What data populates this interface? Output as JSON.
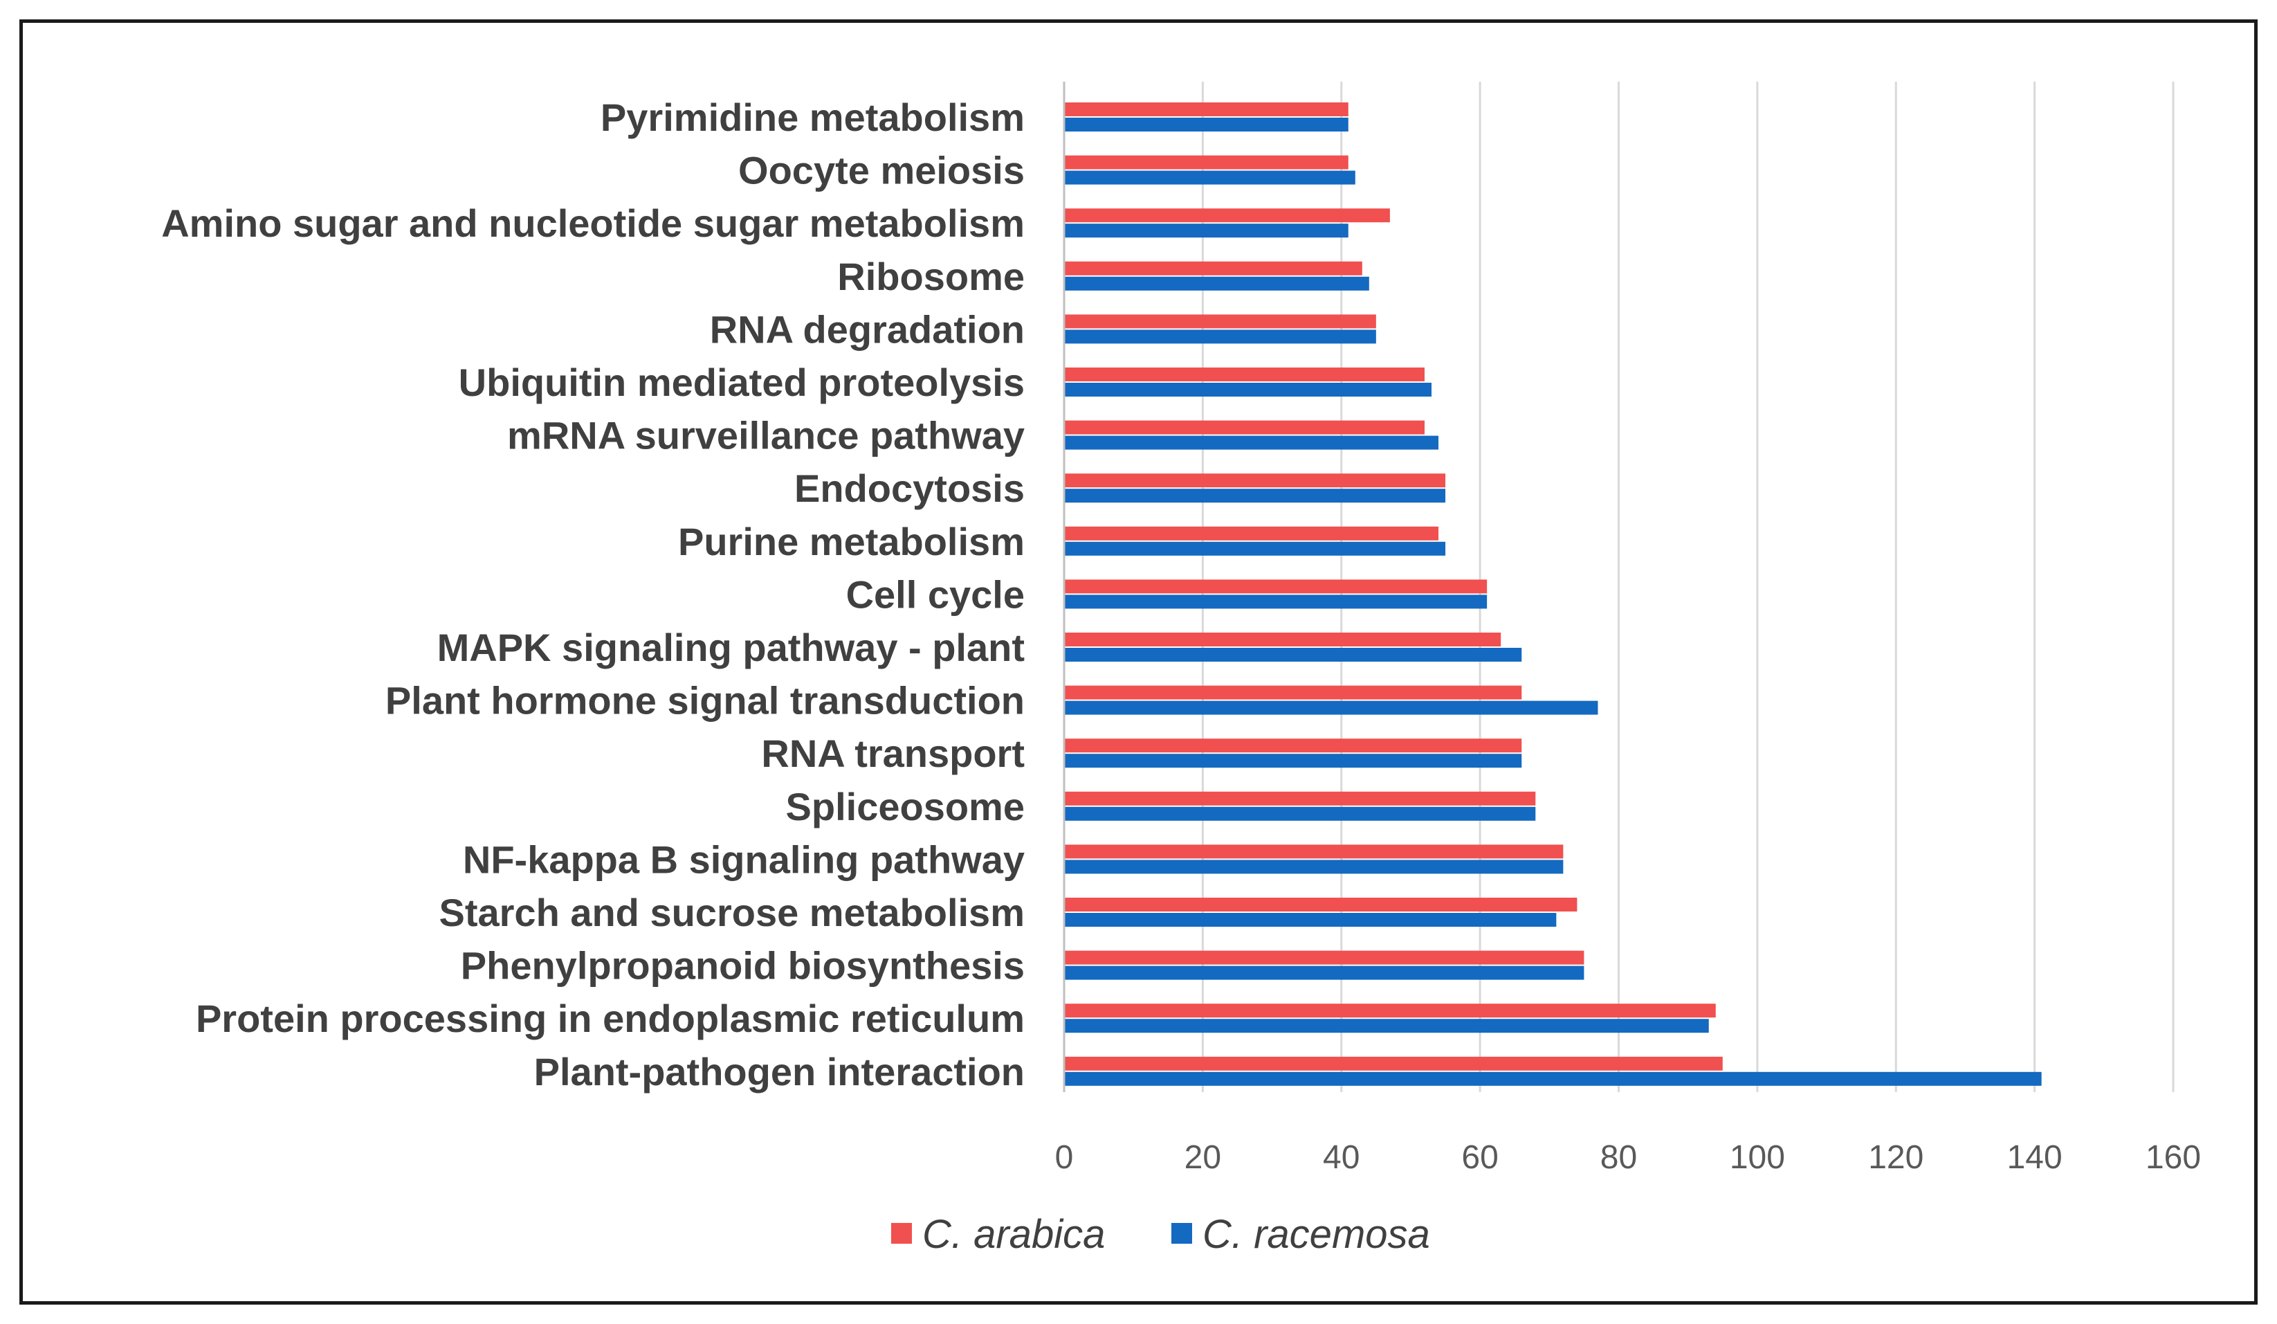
{
  "chart_data": {
    "type": "bar",
    "orientation": "horizontal",
    "categories": [
      "Pyrimidine metabolism",
      "Oocyte meiosis",
      "Amino sugar and nucleotide sugar metabolism",
      "Ribosome",
      "RNA degradation",
      "Ubiquitin mediated proteolysis",
      "mRNA surveillance pathway",
      "Endocytosis",
      "Purine metabolism",
      "Cell cycle",
      "MAPK signaling pathway - plant",
      "Plant hormone signal transduction",
      "RNA transport",
      "Spliceosome",
      "NF-kappa B signaling pathway",
      "Starch and sucrose metabolism",
      "Phenylpropanoid biosynthesis",
      "Protein processing in endoplasmic reticulum",
      "Plant-pathogen interaction"
    ],
    "series": [
      {
        "name": "C. arabica",
        "color": "#f0504f",
        "values": [
          41,
          41,
          47,
          43,
          45,
          52,
          52,
          55,
          54,
          61,
          63,
          66,
          66,
          68,
          72,
          74,
          75,
          94,
          95
        ]
      },
      {
        "name": "C. racemosa",
        "color": "#1469c0",
        "values": [
          41,
          42,
          41,
          44,
          45,
          53,
          54,
          55,
          55,
          61,
          66,
          77,
          66,
          68,
          72,
          71,
          75,
          93,
          141
        ]
      }
    ],
    "xlim": [
      0,
      160
    ],
    "xticks": [
      "0",
      "20",
      "40",
      "60",
      "80",
      "100",
      "120",
      "140",
      "160"
    ],
    "xlabel": "",
    "ylabel": "",
    "title": "",
    "grid": "vertical",
    "legend_position": "bottom-center"
  }
}
